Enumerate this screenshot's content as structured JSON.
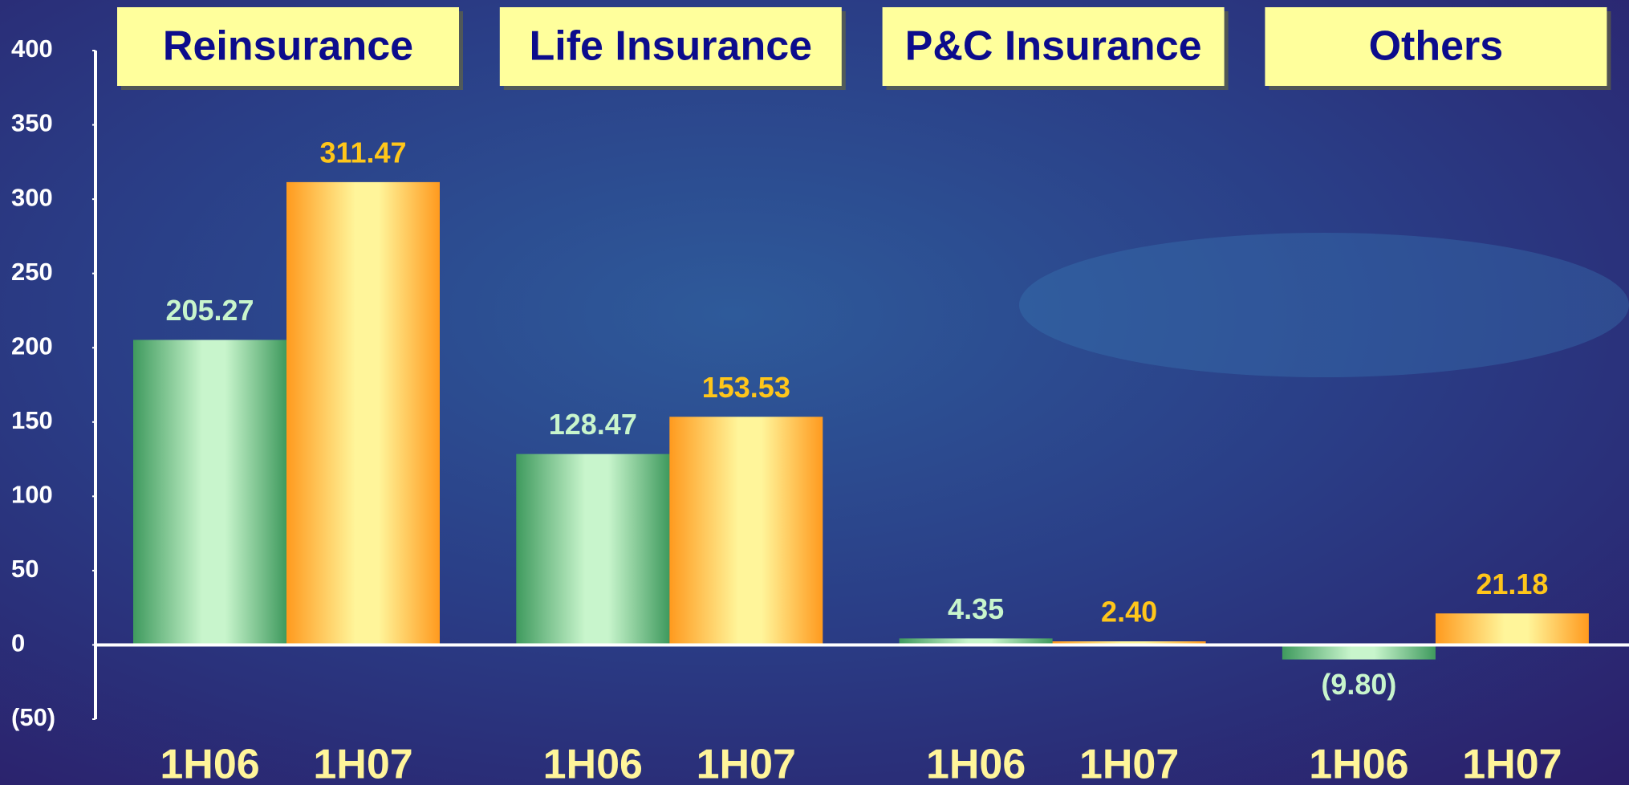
{
  "chart_data": {
    "type": "bar",
    "categories": [
      "Reinsurance",
      "Life Insurance",
      "P&C Insurance",
      "Others"
    ],
    "series": [
      {
        "name": "1H06",
        "color": "#3f9a5e",
        "values": [
          205.27,
          128.47,
          4.35,
          -9.8
        ],
        "value_labels": [
          "205.27",
          "128.47",
          "4.35",
          "(9.80)"
        ]
      },
      {
        "name": "1H07",
        "color": "#ff9a1e",
        "values": [
          311.47,
          153.53,
          2.4,
          21.18
        ],
        "value_labels": [
          "311.47",
          "153.53",
          "2.40",
          "21.18"
        ]
      }
    ],
    "ylim": [
      -50,
      400
    ],
    "yticks": [
      {
        "value": -50,
        "label": "(50)"
      },
      0,
      50,
      100,
      150,
      200,
      250,
      300,
      350,
      400
    ],
    "grid": false
  }
}
